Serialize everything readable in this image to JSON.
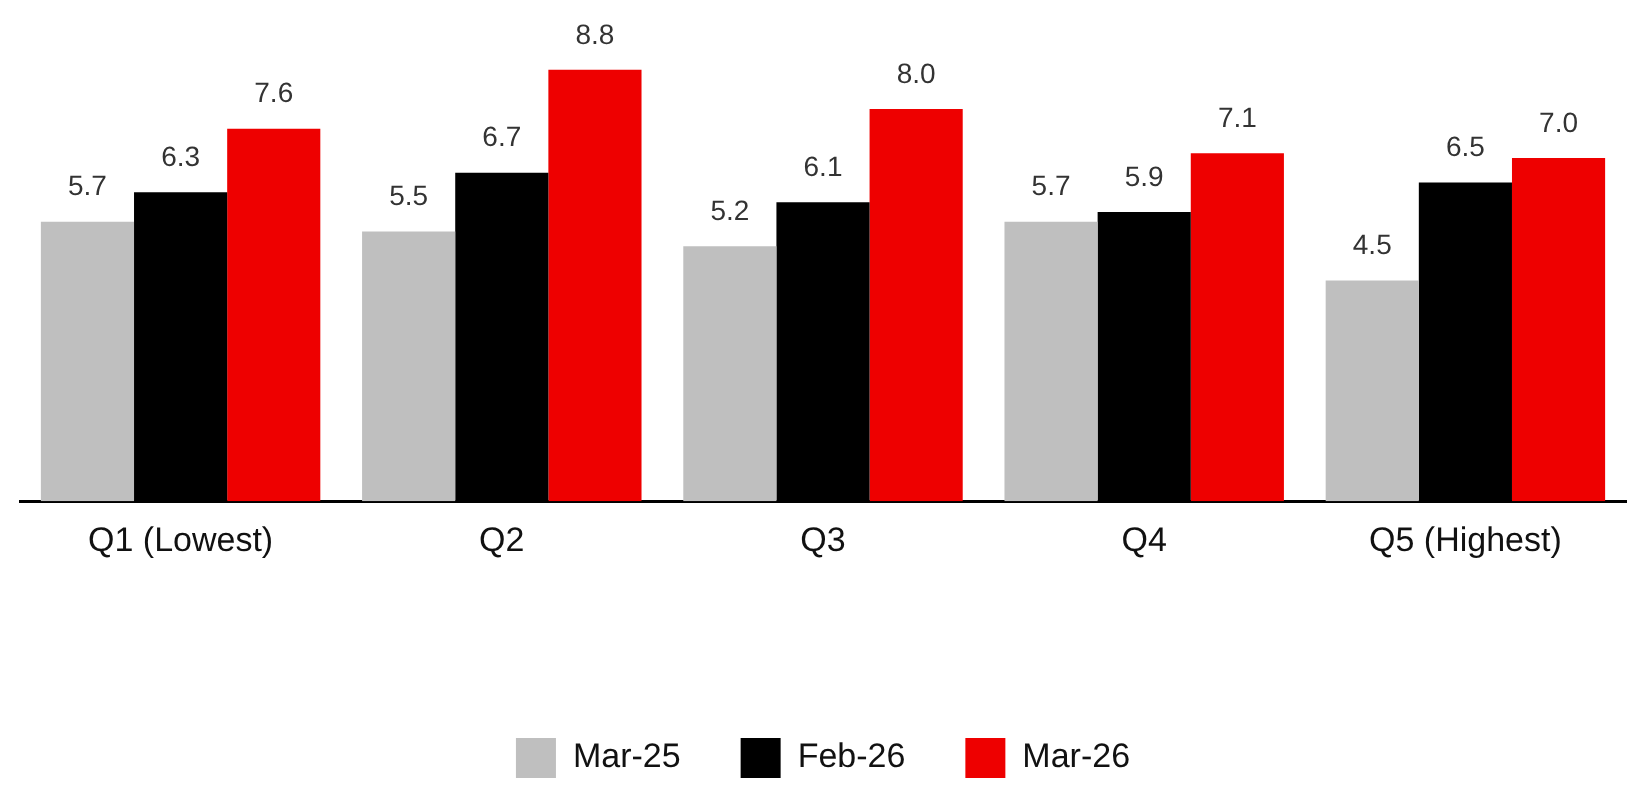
{
  "chart_data": {
    "type": "bar",
    "categories": [
      "Q1 (Lowest)",
      "Q2",
      "Q3",
      "Q4",
      "Q5 (Highest)"
    ],
    "series": [
      {
        "name": "Mar-25",
        "color": "#bfbfbf",
        "values": [
          5.7,
          5.5,
          5.2,
          5.7,
          4.5
        ],
        "value_labels": [
          "5.7",
          "5.5",
          "5.2",
          "5.7",
          "4.5"
        ]
      },
      {
        "name": "Feb-26",
        "color": "#000000",
        "values": [
          6.3,
          6.7,
          6.1,
          5.9,
          6.5
        ],
        "value_labels": [
          "6.3",
          "6.7",
          "6.1",
          "5.9",
          "6.5"
        ]
      },
      {
        "name": "Mar-26",
        "color": "#ee0000",
        "values": [
          7.6,
          8.8,
          8.0,
          7.1,
          7.0
        ],
        "value_labels": [
          "7.6",
          "8.8",
          "8.0",
          "7.1",
          "7.0"
        ]
      }
    ],
    "tick_labels": "x",
    "grid": false,
    "legend": "bottom"
  }
}
